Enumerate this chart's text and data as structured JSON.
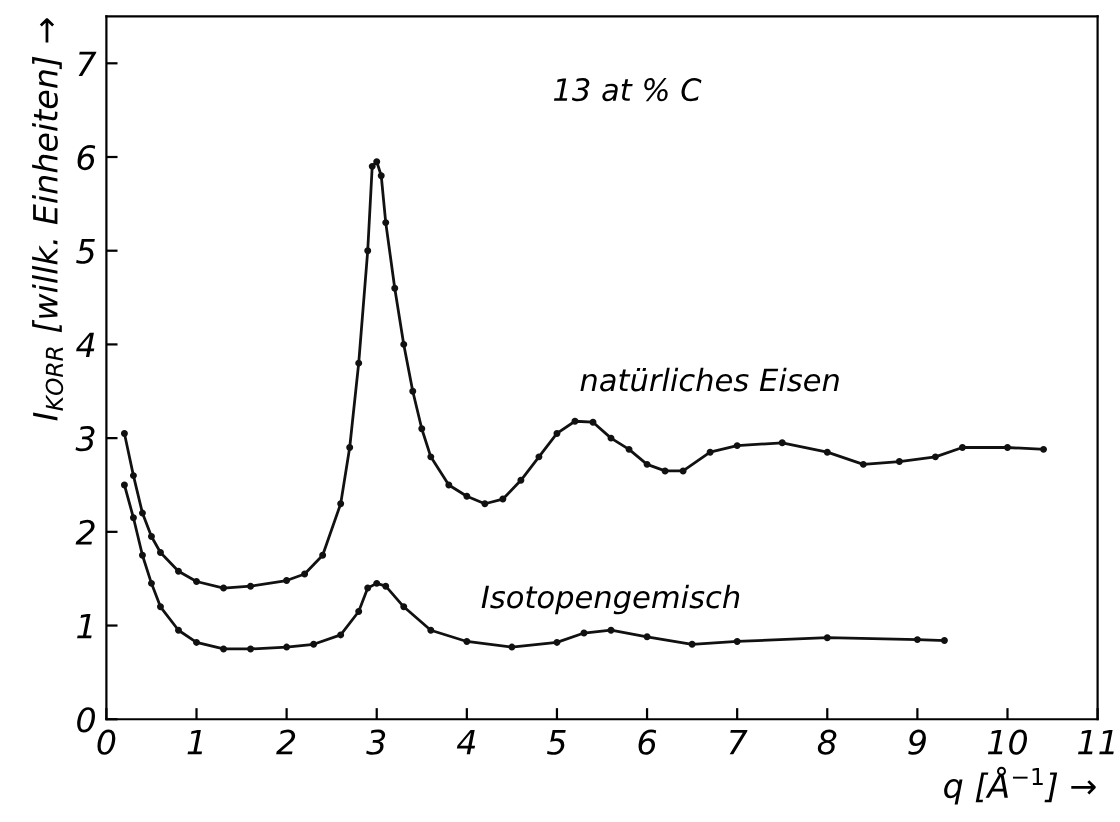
{
  "chart_data": {
    "type": "line",
    "xlabel": "q [Å$^{−1}$] →",
    "ylabel": "I$_{KORR}$ [willk. Einheiten] →",
    "annotations": [
      "13 at % C"
    ],
    "xlim": [
      0,
      11
    ],
    "ylim": [
      0,
      7.5
    ],
    "xticks": [
      0,
      1,
      2,
      3,
      4,
      5,
      6,
      7,
      8,
      9,
      10,
      11
    ],
    "yticks": [
      0,
      1,
      2,
      3,
      4,
      5,
      6,
      7
    ],
    "grid": false,
    "legend": false,
    "marker": "circle",
    "line_style": "solid",
    "series": [
      {
        "name": "natürliches Eisen",
        "color": "#111111",
        "x": [
          0.2,
          0.3,
          0.4,
          0.5,
          0.6,
          0.8,
          1.0,
          1.3,
          1.6,
          2.0,
          2.2,
          2.4,
          2.6,
          2.7,
          2.8,
          2.9,
          2.95,
          3.0,
          3.05,
          3.1,
          3.2,
          3.3,
          3.4,
          3.5,
          3.6,
          3.8,
          4.0,
          4.2,
          4.4,
          4.6,
          4.8,
          5.0,
          5.2,
          5.4,
          5.6,
          5.8,
          6.0,
          6.2,
          6.4,
          6.7,
          7.0,
          7.5,
          8.0,
          8.4,
          8.8,
          9.2,
          9.5,
          10.0,
          10.4
        ],
        "values": [
          3.05,
          2.6,
          2.2,
          1.95,
          1.78,
          1.58,
          1.47,
          1.4,
          1.42,
          1.48,
          1.55,
          1.75,
          2.3,
          2.9,
          3.8,
          5.0,
          5.9,
          5.95,
          5.8,
          5.3,
          4.6,
          4.0,
          3.5,
          3.1,
          2.8,
          2.5,
          2.38,
          2.3,
          2.35,
          2.55,
          2.8,
          3.05,
          3.18,
          3.17,
          3.0,
          2.88,
          2.72,
          2.65,
          2.65,
          2.85,
          2.92,
          2.95,
          2.85,
          2.72,
          2.75,
          2.8,
          2.9,
          2.9,
          2.88
        ]
      },
      {
        "name": "Isotopengemisch",
        "color": "#111111",
        "x": [
          0.2,
          0.3,
          0.4,
          0.5,
          0.6,
          0.8,
          1.0,
          1.3,
          1.6,
          2.0,
          2.3,
          2.6,
          2.8,
          2.9,
          3.0,
          3.1,
          3.3,
          3.6,
          4.0,
          4.5,
          5.0,
          5.3,
          5.6,
          6.0,
          6.5,
          7.0,
          8.0,
          9.0,
          9.3
        ],
        "values": [
          2.5,
          2.15,
          1.75,
          1.45,
          1.2,
          0.95,
          0.82,
          0.75,
          0.75,
          0.77,
          0.8,
          0.9,
          1.15,
          1.4,
          1.45,
          1.42,
          1.2,
          0.95,
          0.83,
          0.77,
          0.82,
          0.92,
          0.95,
          0.88,
          0.8,
          0.83,
          0.87,
          0.85,
          0.84
        ]
      }
    ]
  }
}
